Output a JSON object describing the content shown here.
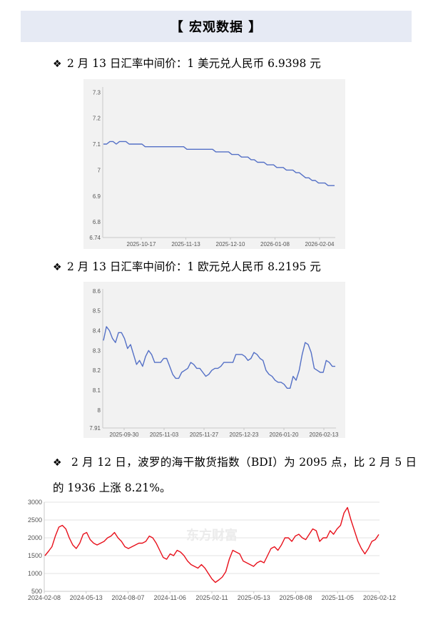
{
  "section_title": "【 宏观数据 】",
  "bullets": {
    "usd": "2 月 13 日汇率中间价：1 美元兑人民币 6.9398 元",
    "eur": "2 月 13 日汇率中间价：1 欧元兑人民币 8.2195 元",
    "bdi": "2 月 12 日，波罗的海干散货指数（BDI）为 2095 点，比 2 月 5 日的 1936 上涨 8.21%。"
  },
  "bullet_icon": "diamond-bullet-icon",
  "watermark": "东方财富",
  "colors": {
    "line": "#5470c6",
    "bdi_line": "#e8101b",
    "panel": "#f2f2f2",
    "header": "#e6eaf4"
  },
  "chart_data": [
    {
      "type": "line",
      "title": "",
      "x_ticks": [
        "2025-10-17",
        "2025-11-13",
        "2025-12-10",
        "2026-01-08",
        "2026-02-04"
      ],
      "y_ticks": [
        "7.3",
        "7.2",
        "7.1",
        "7",
        "6.9",
        "6.8",
        "6.74"
      ],
      "ylim": [
        6.74,
        7.32
      ],
      "series": [
        {
          "values": [
            7.1,
            7.1,
            7.11,
            7.11,
            7.1,
            7.11,
            7.11,
            7.11,
            7.1,
            7.1,
            7.1,
            7.1,
            7.1,
            7.09,
            7.09,
            7.09,
            7.09,
            7.09,
            7.09,
            7.09,
            7.09,
            7.09,
            7.09,
            7.09,
            7.09,
            7.09,
            7.08,
            7.08,
            7.08,
            7.08,
            7.08,
            7.08,
            7.08,
            7.08,
            7.08,
            7.07,
            7.07,
            7.07,
            7.07,
            7.07,
            7.06,
            7.06,
            7.06,
            7.05,
            7.05,
            7.05,
            7.04,
            7.04,
            7.03,
            7.03,
            7.03,
            7.02,
            7.02,
            7.02,
            7.01,
            7.01,
            7.01,
            7.0,
            7.0,
            7.0,
            6.99,
            6.99,
            6.98,
            6.97,
            6.97,
            6.96,
            6.96,
            6.95,
            6.95,
            6.95,
            6.94,
            6.94,
            6.94
          ]
        }
      ]
    },
    {
      "type": "line",
      "title": "",
      "x_ticks": [
        "2025-09-30",
        "2025-11-03",
        "2025-11-27",
        "2025-12-23",
        "2026-01-20",
        "2026-02-13"
      ],
      "y_ticks": [
        "8.6",
        "8.5",
        "8.4",
        "8.3",
        "8.2",
        "8.1",
        "8",
        "7.91"
      ],
      "ylim": [
        7.91,
        8.61
      ],
      "series": [
        {
          "values": [
            8.35,
            8.42,
            8.4,
            8.36,
            8.34,
            8.39,
            8.39,
            8.36,
            8.31,
            8.33,
            8.28,
            8.23,
            8.25,
            8.22,
            8.27,
            8.3,
            8.28,
            8.24,
            8.24,
            8.24,
            8.26,
            8.26,
            8.22,
            8.18,
            8.16,
            8.16,
            8.19,
            8.2,
            8.21,
            8.24,
            8.23,
            8.21,
            8.21,
            8.19,
            8.17,
            8.18,
            8.2,
            8.21,
            8.21,
            8.22,
            8.24,
            8.24,
            8.24,
            8.24,
            8.28,
            8.28,
            8.28,
            8.27,
            8.25,
            8.26,
            8.29,
            8.28,
            8.26,
            8.25,
            8.2,
            8.18,
            8.17,
            8.15,
            8.14,
            8.14,
            8.13,
            8.11,
            8.11,
            8.17,
            8.15,
            8.2,
            8.28,
            8.34,
            8.33,
            8.29,
            8.21,
            8.2,
            8.19,
            8.19,
            8.25,
            8.24,
            8.22,
            8.22
          ]
        }
      ]
    },
    {
      "type": "line",
      "title": "",
      "x_ticks": [
        "2024-02-08",
        "2024-05-13",
        "2024-08-07",
        "2024-11-06",
        "2025-02-11",
        "2025-05-13",
        "2025-08-08",
        "2025-11-05",
        "2026-02-12"
      ],
      "y_ticks": [
        "3000",
        "2500",
        "2000",
        "1500",
        "1000",
        "500"
      ],
      "ylim": [
        500,
        3000
      ],
      "series": [
        {
          "values": [
            1500,
            1620,
            1750,
            2050,
            2300,
            2350,
            2250,
            2000,
            1800,
            1700,
            1850,
            2100,
            2150,
            1950,
            1850,
            1800,
            1850,
            1900,
            2000,
            2050,
            2150,
            2000,
            1900,
            1750,
            1700,
            1750,
            1800,
            1850,
            1850,
            1900,
            2050,
            2000,
            1850,
            1650,
            1450,
            1400,
            1550,
            1500,
            1650,
            1600,
            1500,
            1350,
            1250,
            1200,
            1150,
            1250,
            1150,
            1000,
            850,
            750,
            820,
            900,
            1050,
            1400,
            1650,
            1600,
            1550,
            1350,
            1300,
            1250,
            1200,
            1300,
            1350,
            1300,
            1500,
            1700,
            1750,
            1650,
            1800,
            2000,
            2000,
            1900,
            2050,
            2100,
            2000,
            1950,
            2100,
            2250,
            2200,
            1900,
            2000,
            2000,
            2200,
            2100,
            2250,
            2350,
            2700,
            2850,
            2500,
            2200,
            1900,
            1700,
            1550,
            1700,
            1900,
            1950,
            2095
          ]
        }
      ]
    }
  ]
}
